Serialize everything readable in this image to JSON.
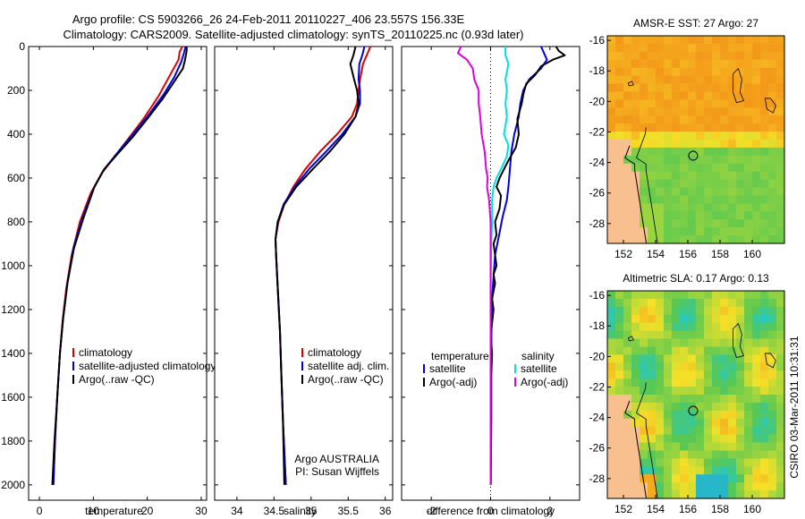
{
  "header": {
    "line1": "Argo profile: CS 5903266_26 24-Feb-2011 20110227_406 23.557S 156.33E",
    "line2": "Climatology: CARS2009. Satellite-adjusted climatology: synTS_20110225.nc (0.93d later)"
  },
  "side_label": "CSIRO 03-Mar-2011 10:31:31",
  "chart_data": [
    {
      "id": "temperature",
      "type": "line",
      "xlabel": "temperature",
      "xlim": [
        -2,
        31
      ],
      "ylim": [
        0,
        2070
      ],
      "xticks": [
        0,
        10,
        20,
        30
      ],
      "yticks": [
        0,
        200,
        400,
        600,
        800,
        1000,
        1200,
        1400,
        1600,
        1800,
        2000
      ],
      "legend": [
        "climatology",
        "satellite-adjusted climatology",
        "Argo(..raw -QC)"
      ],
      "series": [
        {
          "name": "climatology",
          "color": "#e00000",
          "points": [
            [
              26.5,
              0
            ],
            [
              26,
              25
            ],
            [
              25.8,
              60
            ],
            [
              24,
              140
            ],
            [
              22,
              230
            ],
            [
              19.3,
              330
            ],
            [
              16.5,
              420
            ],
            [
              14,
              500
            ],
            [
              11.5,
              580
            ],
            [
              9.5,
              670
            ],
            [
              7.5,
              800
            ],
            [
              6,
              950
            ],
            [
              5,
              1100
            ],
            [
              4.3,
              1250
            ],
            [
              3.8,
              1400
            ],
            [
              3.3,
              1600
            ],
            [
              2.9,
              1800
            ],
            [
              2.6,
              2000
            ]
          ]
        },
        {
          "name": "satellite-adjusted climatology",
          "color": "#0000dd",
          "points": [
            [
              27.1,
              0
            ],
            [
              26.8,
              30
            ],
            [
              26.3,
              70
            ],
            [
              25,
              140
            ],
            [
              23,
              220
            ],
            [
              20,
              320
            ],
            [
              17,
              410
            ],
            [
              14.3,
              490
            ],
            [
              12,
              560
            ],
            [
              10,
              650
            ],
            [
              8,
              780
            ],
            [
              6.3,
              920
            ],
            [
              5.2,
              1080
            ],
            [
              4.4,
              1240
            ],
            [
              3.8,
              1400
            ],
            [
              3.3,
              1600
            ],
            [
              2.9,
              1800
            ],
            [
              2.6,
              2000
            ]
          ]
        },
        {
          "name": "Argo(..raw -QC)",
          "color": "#000000",
          "points": [
            [
              27.3,
              0
            ],
            [
              27.3,
              20
            ],
            [
              27,
              60
            ],
            [
              26.6,
              100
            ],
            [
              25,
              160
            ],
            [
              22.8,
              240
            ],
            [
              20,
              330
            ],
            [
              17.4,
              410
            ],
            [
              14.5,
              490
            ],
            [
              12,
              560
            ],
            [
              10.2,
              640
            ],
            [
              8.2,
              780
            ],
            [
              6.4,
              920
            ],
            [
              5.2,
              1080
            ],
            [
              4.4,
              1240
            ],
            [
              3.8,
              1400
            ],
            [
              3.3,
              1600
            ],
            [
              2.8,
              1800
            ],
            [
              2.4,
              2000
            ]
          ]
        }
      ]
    },
    {
      "id": "salinity",
      "type": "line",
      "xlabel": "salinity",
      "xlim": [
        33.7,
        36.1
      ],
      "ylim": [
        0,
        2070
      ],
      "xticks": [
        34,
        34.5,
        35,
        35.5,
        36
      ],
      "yticks": [
        0,
        200,
        400,
        600,
        800,
        1000,
        1200,
        1400,
        1600,
        1800,
        2000
      ],
      "legend": [
        "climatology",
        "satellite adj. clim.",
        "Argo(..raw -QC)"
      ],
      "annotation": [
        "Argo AUSTRALIA",
        "PI: Susan Wijffels"
      ],
      "series": [
        {
          "name": "climatology",
          "color": "#e00000",
          "points": [
            [
              35.8,
              0
            ],
            [
              35.75,
              40
            ],
            [
              35.7,
              80
            ],
            [
              35.66,
              150
            ],
            [
              35.64,
              200
            ],
            [
              35.62,
              260
            ],
            [
              35.55,
              320
            ],
            [
              35.35,
              400
            ],
            [
              35.12,
              480
            ],
            [
              34.92,
              560
            ],
            [
              34.76,
              640
            ],
            [
              34.64,
              720
            ],
            [
              34.56,
              800
            ],
            [
              34.52,
              880
            ],
            [
              34.53,
              960
            ],
            [
              34.55,
              1100
            ],
            [
              34.58,
              1300
            ],
            [
              34.6,
              1500
            ],
            [
              34.62,
              1700
            ],
            [
              34.64,
              1850
            ],
            [
              34.66,
              2000
            ]
          ]
        },
        {
          "name": "satellite adj. clim.",
          "color": "#0000dd",
          "points": [
            [
              35.72,
              0
            ],
            [
              35.69,
              40
            ],
            [
              35.65,
              80
            ],
            [
              35.64,
              150
            ],
            [
              35.66,
              200
            ],
            [
              35.66,
              260
            ],
            [
              35.6,
              320
            ],
            [
              35.42,
              400
            ],
            [
              35.2,
              480
            ],
            [
              34.97,
              560
            ],
            [
              34.78,
              640
            ],
            [
              34.63,
              720
            ],
            [
              34.55,
              800
            ],
            [
              34.52,
              880
            ],
            [
              34.53,
              960
            ],
            [
              34.55,
              1100
            ],
            [
              34.58,
              1300
            ],
            [
              34.6,
              1500
            ],
            [
              34.62,
              1700
            ],
            [
              34.64,
              1850
            ],
            [
              34.66,
              2000
            ]
          ]
        },
        {
          "name": "Argo(..raw -QC)",
          "color": "#000000",
          "points": [
            [
              35.6,
              0
            ],
            [
              35.57,
              40
            ],
            [
              35.53,
              80
            ],
            [
              35.58,
              150
            ],
            [
              35.62,
              200
            ],
            [
              35.64,
              260
            ],
            [
              35.6,
              320
            ],
            [
              35.45,
              400
            ],
            [
              35.25,
              480
            ],
            [
              35.02,
              560
            ],
            [
              34.8,
              640
            ],
            [
              34.64,
              720
            ],
            [
              34.55,
              800
            ],
            [
              34.52,
              880
            ],
            [
              34.53,
              960
            ],
            [
              34.55,
              1100
            ],
            [
              34.58,
              1300
            ],
            [
              34.6,
              1500
            ],
            [
              34.62,
              1700
            ],
            [
              34.63,
              1850
            ],
            [
              34.64,
              2000
            ]
          ]
        }
      ]
    },
    {
      "id": "difference",
      "type": "line",
      "xlabel": "difference from climatology",
      "xlim": [
        -3,
        3
      ],
      "ylim": [
        0,
        2070
      ],
      "xticks": [
        -2,
        0,
        2
      ],
      "yticks": [
        0,
        200,
        400,
        600,
        800,
        1000,
        1200,
        1400,
        1600,
        1800,
        2000
      ],
      "zero_line": 0,
      "legend_left_title": "temperature",
      "legend_right_title": "salinity",
      "legend": [
        "satellite",
        "Argo(-adj)",
        "satellite",
        "Argo(-adj)"
      ],
      "series": [
        {
          "name": "temperature satellite",
          "color": "#0000dd",
          "points": [
            [
              1.7,
              0
            ],
            [
              1.8,
              30
            ],
            [
              1.9,
              60
            ],
            [
              1.7,
              100
            ],
            [
              1.3,
              150
            ],
            [
              1.1,
              200
            ],
            [
              1.0,
              260
            ],
            [
              0.95,
              320
            ],
            [
              0.8,
              400
            ],
            [
              0.7,
              480
            ],
            [
              0.65,
              560
            ],
            [
              0.6,
              640
            ],
            [
              0.55,
              700
            ],
            [
              0.4,
              780
            ],
            [
              0.3,
              850
            ],
            [
              0.15,
              950
            ],
            [
              0.1,
              1050
            ],
            [
              0.05,
              1150
            ],
            [
              0.03,
              1300
            ],
            [
              0.02,
              1500
            ],
            [
              0.02,
              1700
            ],
            [
              0.01,
              2000
            ]
          ]
        },
        {
          "name": "temperature Argo(-adj)",
          "color": "#000000",
          "points": [
            [
              2.2,
              0
            ],
            [
              2.3,
              20
            ],
            [
              2.5,
              40
            ],
            [
              2.1,
              60
            ],
            [
              1.7,
              90
            ],
            [
              1.5,
              130
            ],
            [
              1.2,
              170
            ],
            [
              1.1,
              220
            ],
            [
              1.05,
              260
            ],
            [
              0.9,
              330
            ],
            [
              0.95,
              400
            ],
            [
              0.85,
              460
            ],
            [
              0.6,
              520
            ],
            [
              0.45,
              560
            ],
            [
              0.3,
              600
            ],
            [
              0.2,
              640
            ],
            [
              0.35,
              680
            ],
            [
              0.3,
              740
            ],
            [
              0.15,
              800
            ],
            [
              0.2,
              860
            ],
            [
              0.1,
              900
            ],
            [
              0.15,
              950
            ],
            [
              0.2,
              1000
            ],
            [
              0.1,
              1040
            ],
            [
              0.15,
              1080
            ],
            [
              0.05,
              1150
            ],
            [
              0.1,
              1200
            ],
            [
              0.05,
              1260
            ],
            [
              0.0,
              1320
            ],
            [
              0.05,
              1400
            ],
            [
              0.02,
              1500
            ],
            [
              0.02,
              1700
            ],
            [
              0.0,
              2000
            ]
          ]
        },
        {
          "name": "salinity satellite",
          "color": "#00e0e0",
          "points": [
            [
              0.5,
              0
            ],
            [
              0.5,
              40
            ],
            [
              0.6,
              80
            ],
            [
              0.5,
              150
            ],
            [
              0.55,
              200
            ],
            [
              0.5,
              260
            ],
            [
              0.55,
              320
            ],
            [
              0.5,
              360
            ],
            [
              0.45,
              400
            ],
            [
              0.6,
              450
            ],
            [
              0.55,
              500
            ],
            [
              0.35,
              560
            ],
            [
              0.2,
              600
            ],
            [
              0.1,
              640
            ],
            [
              0.05,
              700
            ],
            [
              0.05,
              800
            ],
            [
              0.02,
              900
            ],
            [
              0.0,
              1100
            ],
            [
              0.0,
              1400
            ],
            [
              0.0,
              1700
            ],
            [
              0.0,
              2000
            ]
          ]
        },
        {
          "name": "salinity Argo(-adj)",
          "color": "#e000e0",
          "points": [
            [
              -1.0,
              0
            ],
            [
              -1.1,
              30
            ],
            [
              -0.8,
              60
            ],
            [
              -0.6,
              100
            ],
            [
              -0.55,
              150
            ],
            [
              -0.4,
              200
            ],
            [
              -0.4,
              260
            ],
            [
              -0.35,
              320
            ],
            [
              -0.3,
              400
            ],
            [
              -0.2,
              480
            ],
            [
              -0.15,
              560
            ],
            [
              -0.1,
              600
            ],
            [
              -0.12,
              640
            ],
            [
              -0.05,
              700
            ],
            [
              0.0,
              800
            ],
            [
              0.0,
              1000
            ],
            [
              0.0,
              1300
            ],
            [
              0.0,
              1600
            ],
            [
              0.0,
              2000
            ]
          ]
        }
      ]
    },
    {
      "id": "sst_map",
      "type": "heatmap",
      "title": "AMSR-E SST: 27 Argo: 27",
      "xticks": [
        152,
        154,
        156,
        158,
        160
      ],
      "yticks": [
        -16,
        -18,
        -20,
        -22,
        -24,
        -26,
        -28
      ],
      "xlim": [
        151,
        162
      ],
      "ylim": [
        -29.3,
        -15.7
      ],
      "marker": [
        156.33,
        -23.557
      ]
    },
    {
      "id": "sla_map",
      "type": "heatmap",
      "title": "Altimetric SLA: 0.17 Argo: 0.13",
      "xticks": [
        152,
        154,
        156,
        158,
        160
      ],
      "yticks": [
        -16,
        -18,
        -20,
        -22,
        -24,
        -26,
        -28
      ],
      "xlim": [
        151,
        162
      ],
      "ylim": [
        -29.3,
        -15.7
      ],
      "marker": [
        156.33,
        -23.557
      ]
    }
  ]
}
